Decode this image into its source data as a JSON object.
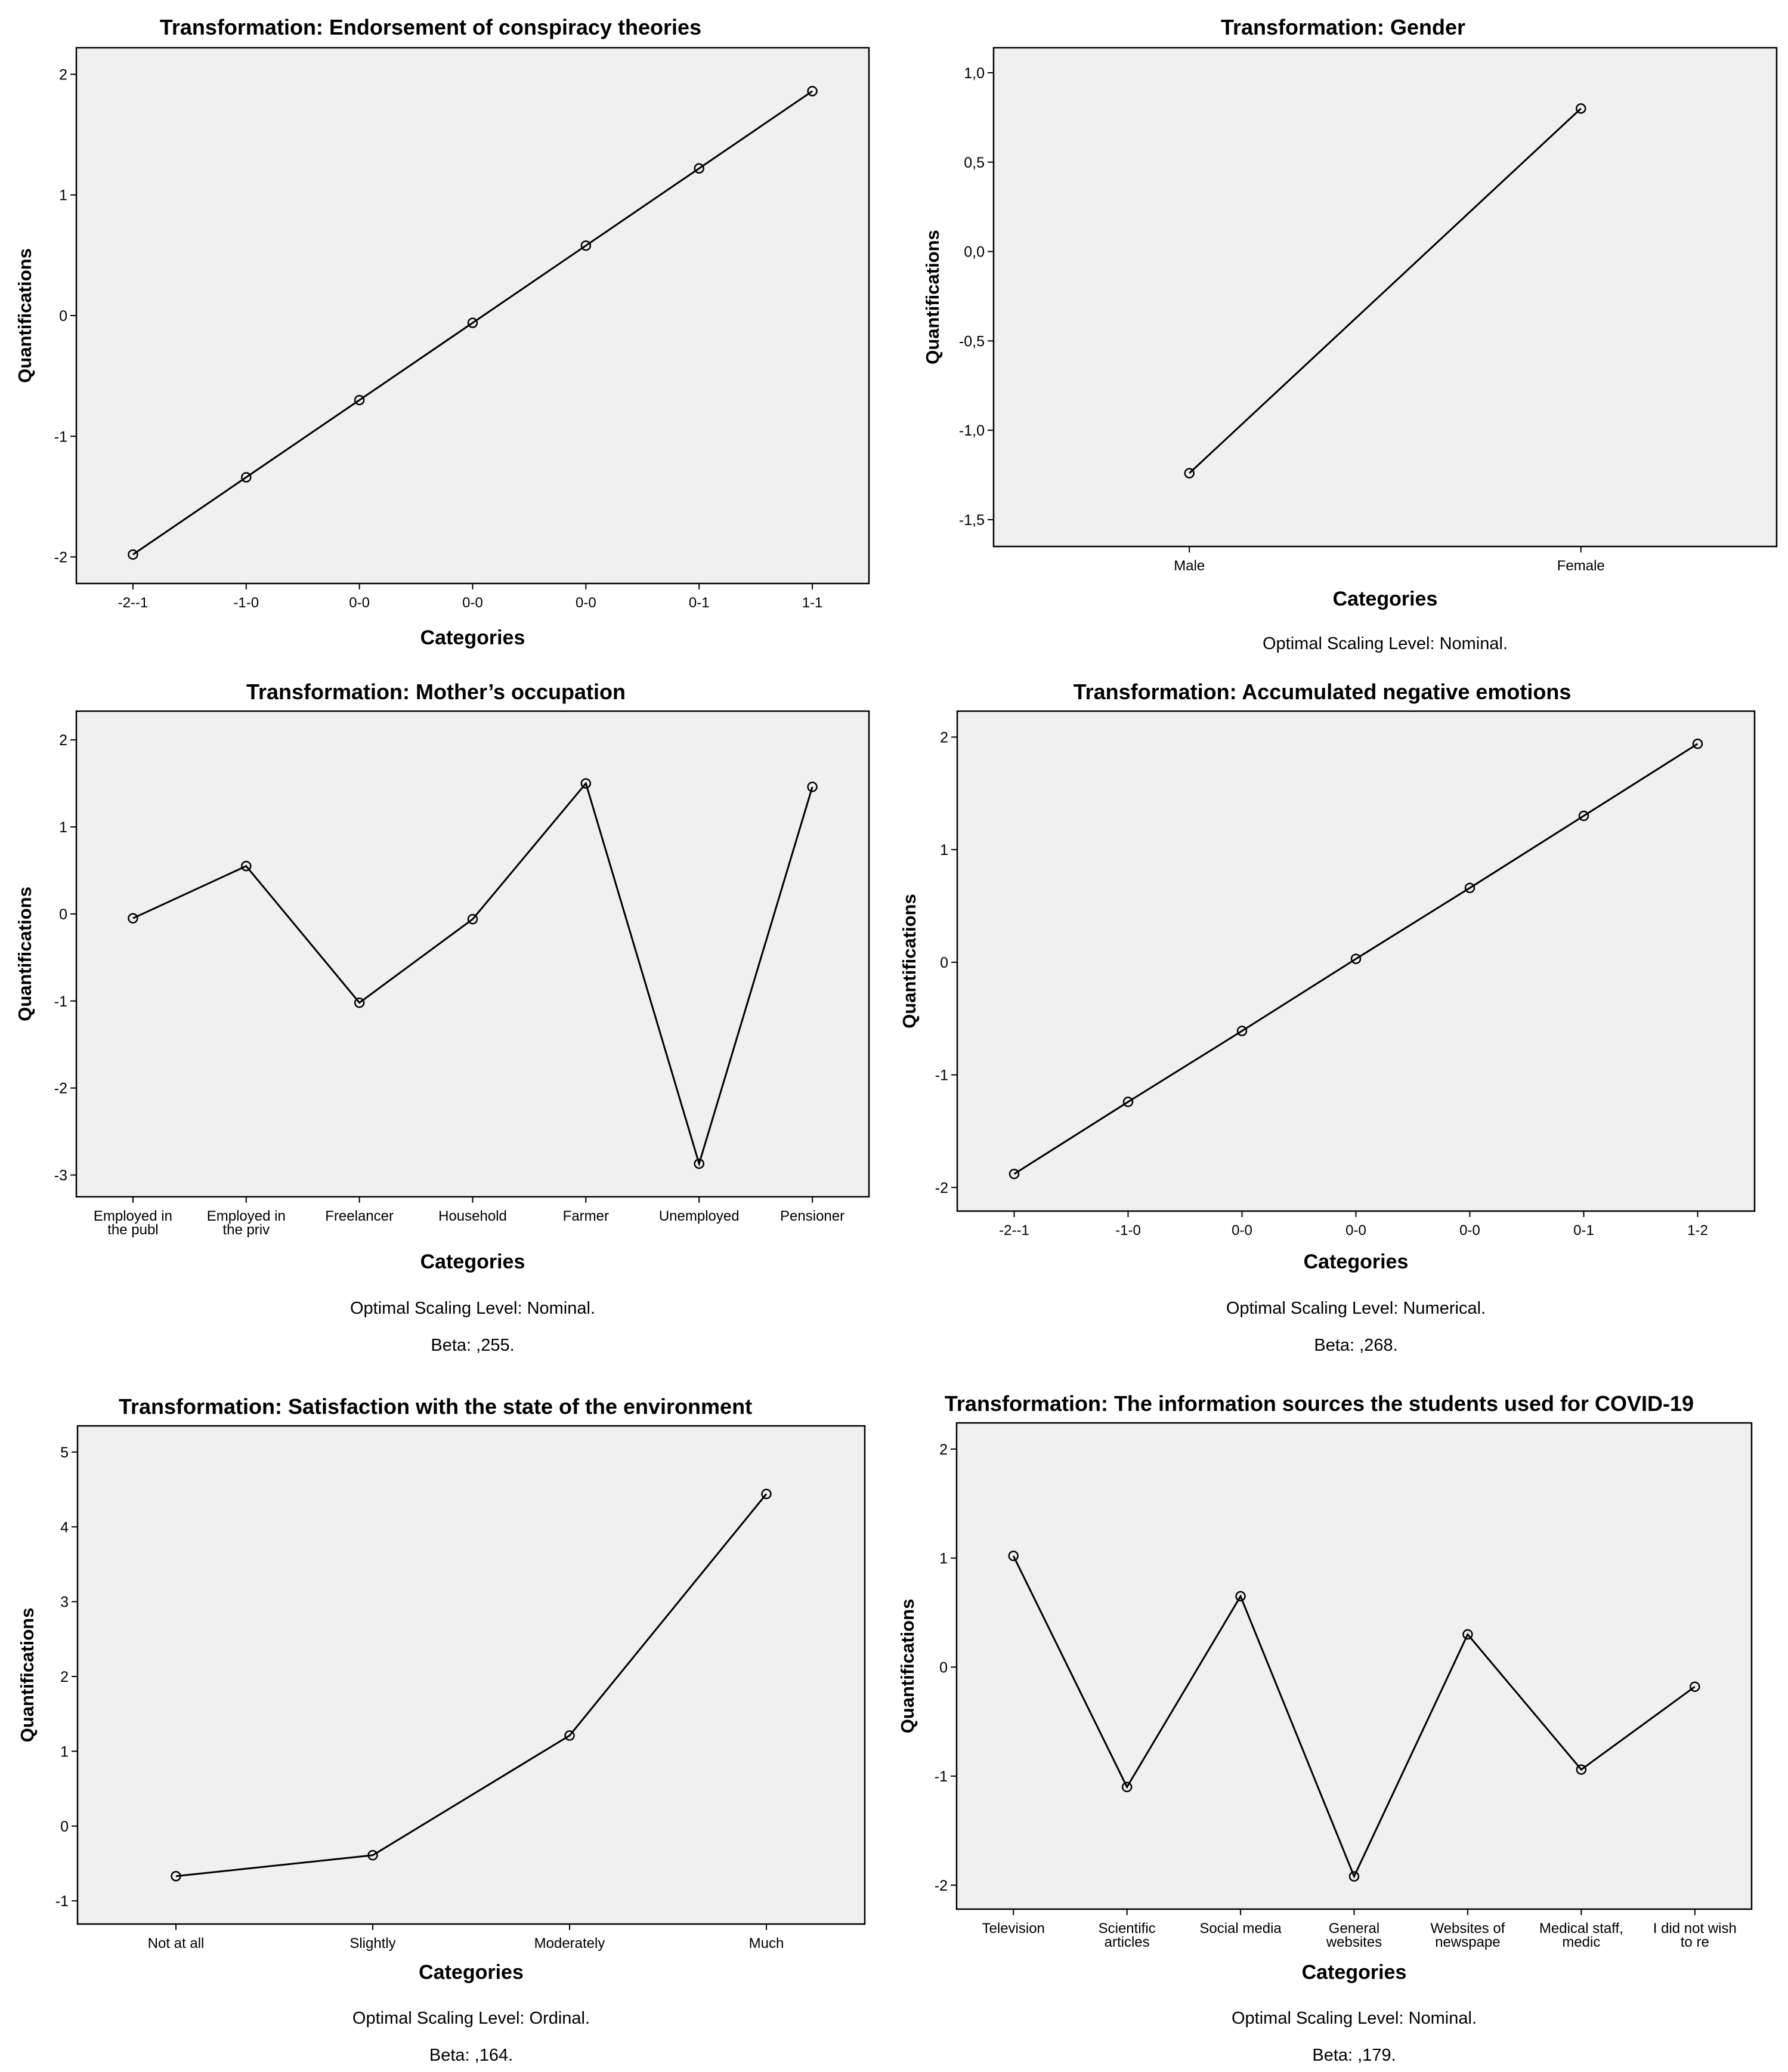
{
  "chart_data": [
    {
      "type": "line",
      "title": "Transformation: Endorsement of conspiracy theories",
      "xlabel": "Categories",
      "ylabel": "Quantifications",
      "categories": [
        "-2--1",
        "-1-0",
        "0-0",
        "0-0",
        "0-0",
        "0-1",
        "1-1"
      ],
      "values": [
        -1.98,
        -1.34,
        -0.7,
        -0.06,
        0.58,
        1.22,
        1.86
      ],
      "yticks": [
        -2,
        -1,
        0,
        1,
        2
      ],
      "ytick_labels": [
        "-2",
        "-1",
        "0",
        "1",
        "2"
      ],
      "ylim": [
        -2.22,
        2.22
      ],
      "notes": []
    },
    {
      "type": "line",
      "title": "Transformation: Gender",
      "xlabel": "Categories",
      "ylabel": "Quantifications",
      "categories": [
        "Male",
        "Female"
      ],
      "values": [
        -1.24,
        0.8
      ],
      "yticks": [
        1.0,
        0.5,
        0.0,
        -0.5,
        -1.0,
        -1.5
      ],
      "ytick_labels": [
        "1,0",
        "0,5",
        "0,0",
        "-0,5",
        "-1,0",
        "-1,5"
      ],
      "ylim": [
        -1.65,
        1.14
      ],
      "notes": [
        "Optimal Scaling Level: Nominal."
      ]
    },
    {
      "type": "line",
      "title": "Transformation: Mother’s occupation",
      "xlabel": "Categories",
      "ylabel": "Quantifications",
      "categories": [
        [
          "Employed in",
          "the publ"
        ],
        [
          "Employed in",
          "the priv"
        ],
        [
          "Freelancer"
        ],
        [
          "Household"
        ],
        [
          "Farmer"
        ],
        [
          "Unemployed"
        ],
        [
          "Pensioner"
        ]
      ],
      "values": [
        -0.05,
        0.55,
        -1.02,
        -0.06,
        1.5,
        -2.87,
        1.46
      ],
      "yticks": [
        2,
        1,
        0,
        -1,
        -2,
        -3
      ],
      "ytick_labels": [
        "2",
        "1",
        "0",
        "-1",
        "-2",
        "-3"
      ],
      "ylim": [
        -3.25,
        2.33
      ],
      "notes": [
        "Optimal Scaling Level: Nominal.",
        "Beta:  ,255."
      ]
    },
    {
      "type": "line",
      "title": "Transformation: Accumulated negative emotions",
      "xlabel": "Categories",
      "ylabel": "Quantifications",
      "categories": [
        "-2--1",
        "-1-0",
        "0-0",
        "0-0",
        "0-0",
        "0-1",
        "1-2"
      ],
      "values": [
        -1.88,
        -1.24,
        -0.61,
        0.03,
        0.66,
        1.3,
        1.94
      ],
      "yticks": [
        2,
        1,
        0,
        -1,
        -2
      ],
      "ytick_labels": [
        "2",
        "1",
        "0",
        "-1",
        "-2"
      ],
      "ylim": [
        -2.21,
        2.23
      ],
      "notes": [
        "Optimal Scaling Level: Numerical.",
        "Beta:  ,268."
      ]
    },
    {
      "type": "line",
      "title": "Transformation: Satisfaction with the state of the environment",
      "xlabel": "Categories",
      "ylabel": "Quantifications",
      "categories": [
        "Not at all",
        "Slightly",
        "Moderately",
        "Much"
      ],
      "values": [
        -0.67,
        -0.39,
        1.21,
        4.44
      ],
      "yticks": [
        5,
        4,
        3,
        2,
        1,
        0,
        -1
      ],
      "ytick_labels": [
        "5",
        "4",
        "3",
        "2",
        "1",
        "0",
        "-1"
      ],
      "ylim": [
        -1.31,
        5.35
      ],
      "notes": [
        "Optimal Scaling Level: Ordinal.",
        "Beta:  ,164."
      ]
    },
    {
      "type": "line",
      "title": "Transformation: The information sources the students used for COVID-19",
      "xlabel": "Categories",
      "ylabel": "Quantifications",
      "categories": [
        [
          "Television"
        ],
        [
          "Scientific",
          "articles"
        ],
        [
          "Social media"
        ],
        [
          "General",
          "websites"
        ],
        [
          "Websites of",
          "newspape"
        ],
        [
          "Medical staff,",
          "medic"
        ],
        [
          "I did not wish",
          "to re"
        ]
      ],
      "values": [
        1.02,
        -1.1,
        0.65,
        -1.92,
        0.3,
        -0.94,
        -0.18
      ],
      "yticks": [
        2,
        1,
        0,
        -1,
        -2
      ],
      "ytick_labels": [
        "2",
        "1",
        "0",
        "-1",
        "-2"
      ],
      "ylim": [
        -2.22,
        2.24
      ],
      "notes": [
        "Optimal Scaling Level: Nominal.",
        "Beta:  ,179."
      ]
    }
  ]
}
